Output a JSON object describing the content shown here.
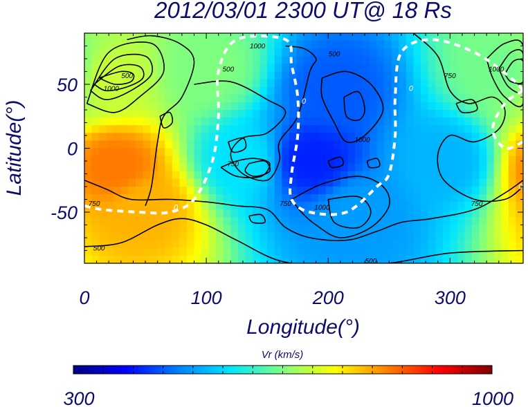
{
  "chart_data": {
    "type": "heatmap",
    "title": "2012/03/01 2300 UT@ 18 Rs",
    "xlabel": "Longitude(°)",
    "ylabel": "Latitude(°)",
    "xlim": [
      0,
      360
    ],
    "ylim": [
      -90,
      90
    ],
    "x_ticks": [
      0,
      100,
      200,
      300
    ],
    "y_ticks": [
      -50,
      0,
      50
    ],
    "colorbar": {
      "label": "Vr (km/s)",
      "min": 300,
      "max": 1000,
      "min_label": "300",
      "max_label": "1000"
    },
    "colormap": [
      "#00007f",
      "#0000ff",
      "#007fff",
      "#00e6ff",
      "#7fff7f",
      "#ffff00",
      "#ff7f00",
      "#ff0000",
      "#7f0000"
    ],
    "field_centers": [
      {
        "lon": 25,
        "lat": -15,
        "vr": 830
      },
      {
        "lon": 50,
        "lat": -45,
        "vr": 790
      },
      {
        "lon": 20,
        "lat": 55,
        "vr": 700
      },
      {
        "lon": 345,
        "lat": 60,
        "vr": 640
      },
      {
        "lon": 185,
        "lat": -10,
        "vr": 410
      },
      {
        "lon": 205,
        "lat": 45,
        "vr": 450
      },
      {
        "lon": 225,
        "lat": -50,
        "vr": 500
      },
      {
        "lon": 295,
        "lat": -10,
        "vr": 520
      },
      {
        "lon": 130,
        "lat": -10,
        "vr": 560
      },
      {
        "lon": 100,
        "lat": 60,
        "vr": 650
      }
    ],
    "contour_labels": [
      {
        "lon": 35,
        "lat": 55,
        "text": "500"
      },
      {
        "lon": 22,
        "lat": 45,
        "text": "1000"
      },
      {
        "lon": 118,
        "lat": 60,
        "text": "500"
      },
      {
        "lon": 142,
        "lat": 78,
        "text": "1000"
      },
      {
        "lon": 205,
        "lat": 72,
        "text": "500"
      },
      {
        "lon": 228,
        "lat": 5,
        "text": "1000"
      },
      {
        "lon": 300,
        "lat": 55,
        "text": "750"
      },
      {
        "lon": 338,
        "lat": 60,
        "text": "1000"
      },
      {
        "lon": 8,
        "lat": -45,
        "text": "750"
      },
      {
        "lon": 12,
        "lat": -80,
        "text": "500"
      },
      {
        "lon": 122,
        "lat": -14,
        "text": "750"
      },
      {
        "lon": 165,
        "lat": -45,
        "text": "750"
      },
      {
        "lon": 195,
        "lat": -48,
        "text": "1000"
      },
      {
        "lon": 322,
        "lat": -45,
        "text": "750"
      },
      {
        "lon": 235,
        "lat": -90,
        "text": "500"
      }
    ],
    "neutral_line_labels": [
      {
        "lon": 75,
        "lat": -48,
        "text": "0"
      },
      {
        "lon": 180,
        "lat": 35,
        "text": "0"
      },
      {
        "lon": 268,
        "lat": 45,
        "text": "0"
      },
      {
        "lon": 358,
        "lat": -32,
        "text": "0"
      }
    ],
    "neutral_line": [
      [
        [
          0,
          -45
        ],
        [
          15,
          -48
        ],
        [
          45,
          -50
        ],
        [
          70,
          -50
        ],
        [
          90,
          -40
        ],
        [
          105,
          -10
        ],
        [
          110,
          25
        ],
        [
          110,
          60
        ],
        [
          125,
          85
        ],
        [
          165,
          85
        ],
        [
          170,
          65
        ],
        [
          175,
          40
        ],
        [
          175,
          10
        ],
        [
          170,
          -20
        ],
        [
          170,
          -40
        ],
        [
          185,
          -50
        ],
        [
          215,
          -50
        ],
        [
          240,
          -30
        ],
        [
          250,
          -20
        ],
        [
          255,
          10
        ],
        [
          255,
          40
        ],
        [
          260,
          75
        ],
        [
          285,
          85
        ],
        [
          320,
          75
        ],
        [
          350,
          55
        ],
        [
          360,
          45
        ]
      ],
      [
        [
          360,
          5
        ],
        [
          345,
          0
        ],
        [
          335,
          15
        ],
        [
          345,
          35
        ],
        [
          360,
          45
        ]
      ]
    ],
    "contours": [
      [
        [
          2,
          35
        ],
        [
          20,
          75
        ],
        [
          55,
          82
        ],
        [
          65,
          60
        ],
        [
          45,
          40
        ],
        [
          25,
          28
        ],
        [
          2,
          35
        ]
      ],
      [
        [
          5,
          45
        ],
        [
          25,
          70
        ],
        [
          50,
          72
        ],
        [
          55,
          58
        ],
        [
          38,
          45
        ],
        [
          18,
          38
        ],
        [
          5,
          45
        ]
      ],
      [
        [
          8,
          50
        ],
        [
          28,
          64
        ],
        [
          45,
          64
        ],
        [
          48,
          55
        ],
        [
          35,
          48
        ],
        [
          18,
          45
        ],
        [
          8,
          50
        ]
      ],
      [
        [
          12,
          55
        ],
        [
          30,
          60
        ],
        [
          40,
          58
        ],
        [
          38,
          52
        ],
        [
          25,
          50
        ],
        [
          12,
          55
        ]
      ],
      [
        [
          35,
          85
        ],
        [
          55,
          88
        ],
        [
          78,
          82
        ],
        [
          90,
          68
        ],
        [
          80,
          40
        ],
        [
          65,
          25
        ],
        [
          60,
          5
        ],
        [
          55,
          -30
        ],
        [
          50,
          -45
        ]
      ],
      [
        [
          0,
          -25
        ],
        [
          18,
          -32
        ],
        [
          38,
          -40
        ],
        [
          70,
          -40
        ],
        [
          100,
          -42
        ],
        [
          125,
          -45
        ],
        [
          150,
          -48
        ],
        [
          165,
          -62
        ],
        [
          185,
          -70
        ],
        [
          215,
          -72
        ],
        [
          240,
          -65
        ],
        [
          260,
          -58
        ],
        [
          285,
          -55
        ],
        [
          320,
          -48
        ],
        [
          345,
          -35
        ],
        [
          360,
          -25
        ]
      ],
      [
        [
          0,
          -77
        ],
        [
          30,
          -74
        ],
        [
          60,
          -60
        ],
        [
          80,
          -55
        ],
        [
          100,
          -60
        ],
        [
          125,
          -72
        ],
        [
          160,
          -88
        ],
        [
          200,
          -92
        ],
        [
          250,
          -90
        ],
        [
          300,
          -82
        ],
        [
          360,
          -80
        ]
      ],
      [
        [
          90,
          50
        ],
        [
          120,
          52
        ],
        [
          150,
          38
        ],
        [
          165,
          28
        ],
        [
          150,
          12
        ],
        [
          130,
          8
        ],
        [
          120,
          -5
        ],
        [
          130,
          -20
        ],
        [
          150,
          -25
        ],
        [
          160,
          -10
        ],
        [
          160,
          5
        ],
        [
          175,
          25
        ],
        [
          185,
          60
        ],
        [
          190,
          70
        ],
        [
          180,
          78
        ],
        [
          165,
          80
        ]
      ],
      [
        [
          195,
          55
        ],
        [
          215,
          60
        ],
        [
          235,
          50
        ],
        [
          245,
          30
        ],
        [
          230,
          10
        ],
        [
          215,
          5
        ],
        [
          205,
          20
        ],
        [
          195,
          40
        ],
        [
          195,
          55
        ]
      ],
      [
        [
          213,
          40
        ],
        [
          225,
          44
        ],
        [
          230,
          30
        ],
        [
          225,
          22
        ],
        [
          215,
          25
        ],
        [
          213,
          40
        ]
      ],
      [
        [
          170,
          -40
        ],
        [
          195,
          -28
        ],
        [
          225,
          -22
        ],
        [
          245,
          -30
        ],
        [
          250,
          -45
        ],
        [
          235,
          -62
        ],
        [
          210,
          -70
        ],
        [
          190,
          -60
        ],
        [
          178,
          -50
        ],
        [
          170,
          -40
        ]
      ],
      [
        [
          200,
          -40
        ],
        [
          225,
          -38
        ],
        [
          235,
          -50
        ],
        [
          225,
          -62
        ],
        [
          205,
          -58
        ],
        [
          200,
          -40
        ]
      ],
      [
        [
          270,
          90
        ],
        [
          290,
          72
        ],
        [
          300,
          45
        ],
        [
          315,
          35
        ],
        [
          335,
          40
        ],
        [
          345,
          30
        ],
        [
          340,
          15
        ],
        [
          320,
          5
        ],
        [
          300,
          10
        ],
        [
          290,
          -5
        ],
        [
          295,
          -25
        ],
        [
          320,
          -40
        ],
        [
          345,
          -40
        ],
        [
          360,
          -30
        ]
      ],
      [
        [
          330,
          70
        ],
        [
          345,
          82
        ],
        [
          360,
          80
        ],
        [
          360,
          35
        ],
        [
          345,
          40
        ],
        [
          335,
          55
        ],
        [
          330,
          70
        ]
      ],
      [
        [
          340,
          62
        ],
        [
          350,
          75
        ],
        [
          360,
          74
        ],
        [
          360,
          45
        ],
        [
          348,
          48
        ],
        [
          340,
          62
        ]
      ],
      [
        [
          345,
          58
        ],
        [
          352,
          68
        ],
        [
          360,
          68
        ],
        [
          360,
          52
        ],
        [
          350,
          52
        ],
        [
          345,
          58
        ]
      ],
      [
        [
          62,
          25
        ],
        [
          70,
          28
        ],
        [
          72,
          20
        ],
        [
          65,
          16
        ],
        [
          62,
          25
        ]
      ],
      [
        [
          112,
          -15
        ],
        [
          125,
          -10
        ],
        [
          140,
          -8
        ],
        [
          152,
          -12
        ],
        [
          145,
          -22
        ],
        [
          125,
          -22
        ],
        [
          112,
          -15
        ]
      ],
      [
        [
          135,
          -12
        ],
        [
          148,
          -10
        ],
        [
          152,
          -18
        ],
        [
          140,
          -22
        ],
        [
          132,
          -18
        ],
        [
          135,
          -12
        ]
      ],
      [
        [
          118,
          5
        ],
        [
          130,
          8
        ],
        [
          132,
          0
        ],
        [
          122,
          -3
        ],
        [
          118,
          5
        ]
      ],
      [
        [
          232,
          -10
        ],
        [
          240,
          -8
        ],
        [
          242,
          -14
        ],
        [
          234,
          -15
        ],
        [
          232,
          -10
        ]
      ],
      [
        [
          200,
          -10
        ],
        [
          210,
          -7
        ],
        [
          212,
          -13
        ],
        [
          203,
          -15
        ],
        [
          200,
          -10
        ]
      ],
      [
        [
          305,
          35
        ],
        [
          318,
          38
        ],
        [
          322,
          30
        ],
        [
          310,
          28
        ],
        [
          305,
          35
        ]
      ],
      [
        [
          135,
          -53
        ],
        [
          145,
          -52
        ],
        [
          148,
          -58
        ],
        [
          138,
          -58
        ],
        [
          135,
          -53
        ]
      ]
    ]
  }
}
